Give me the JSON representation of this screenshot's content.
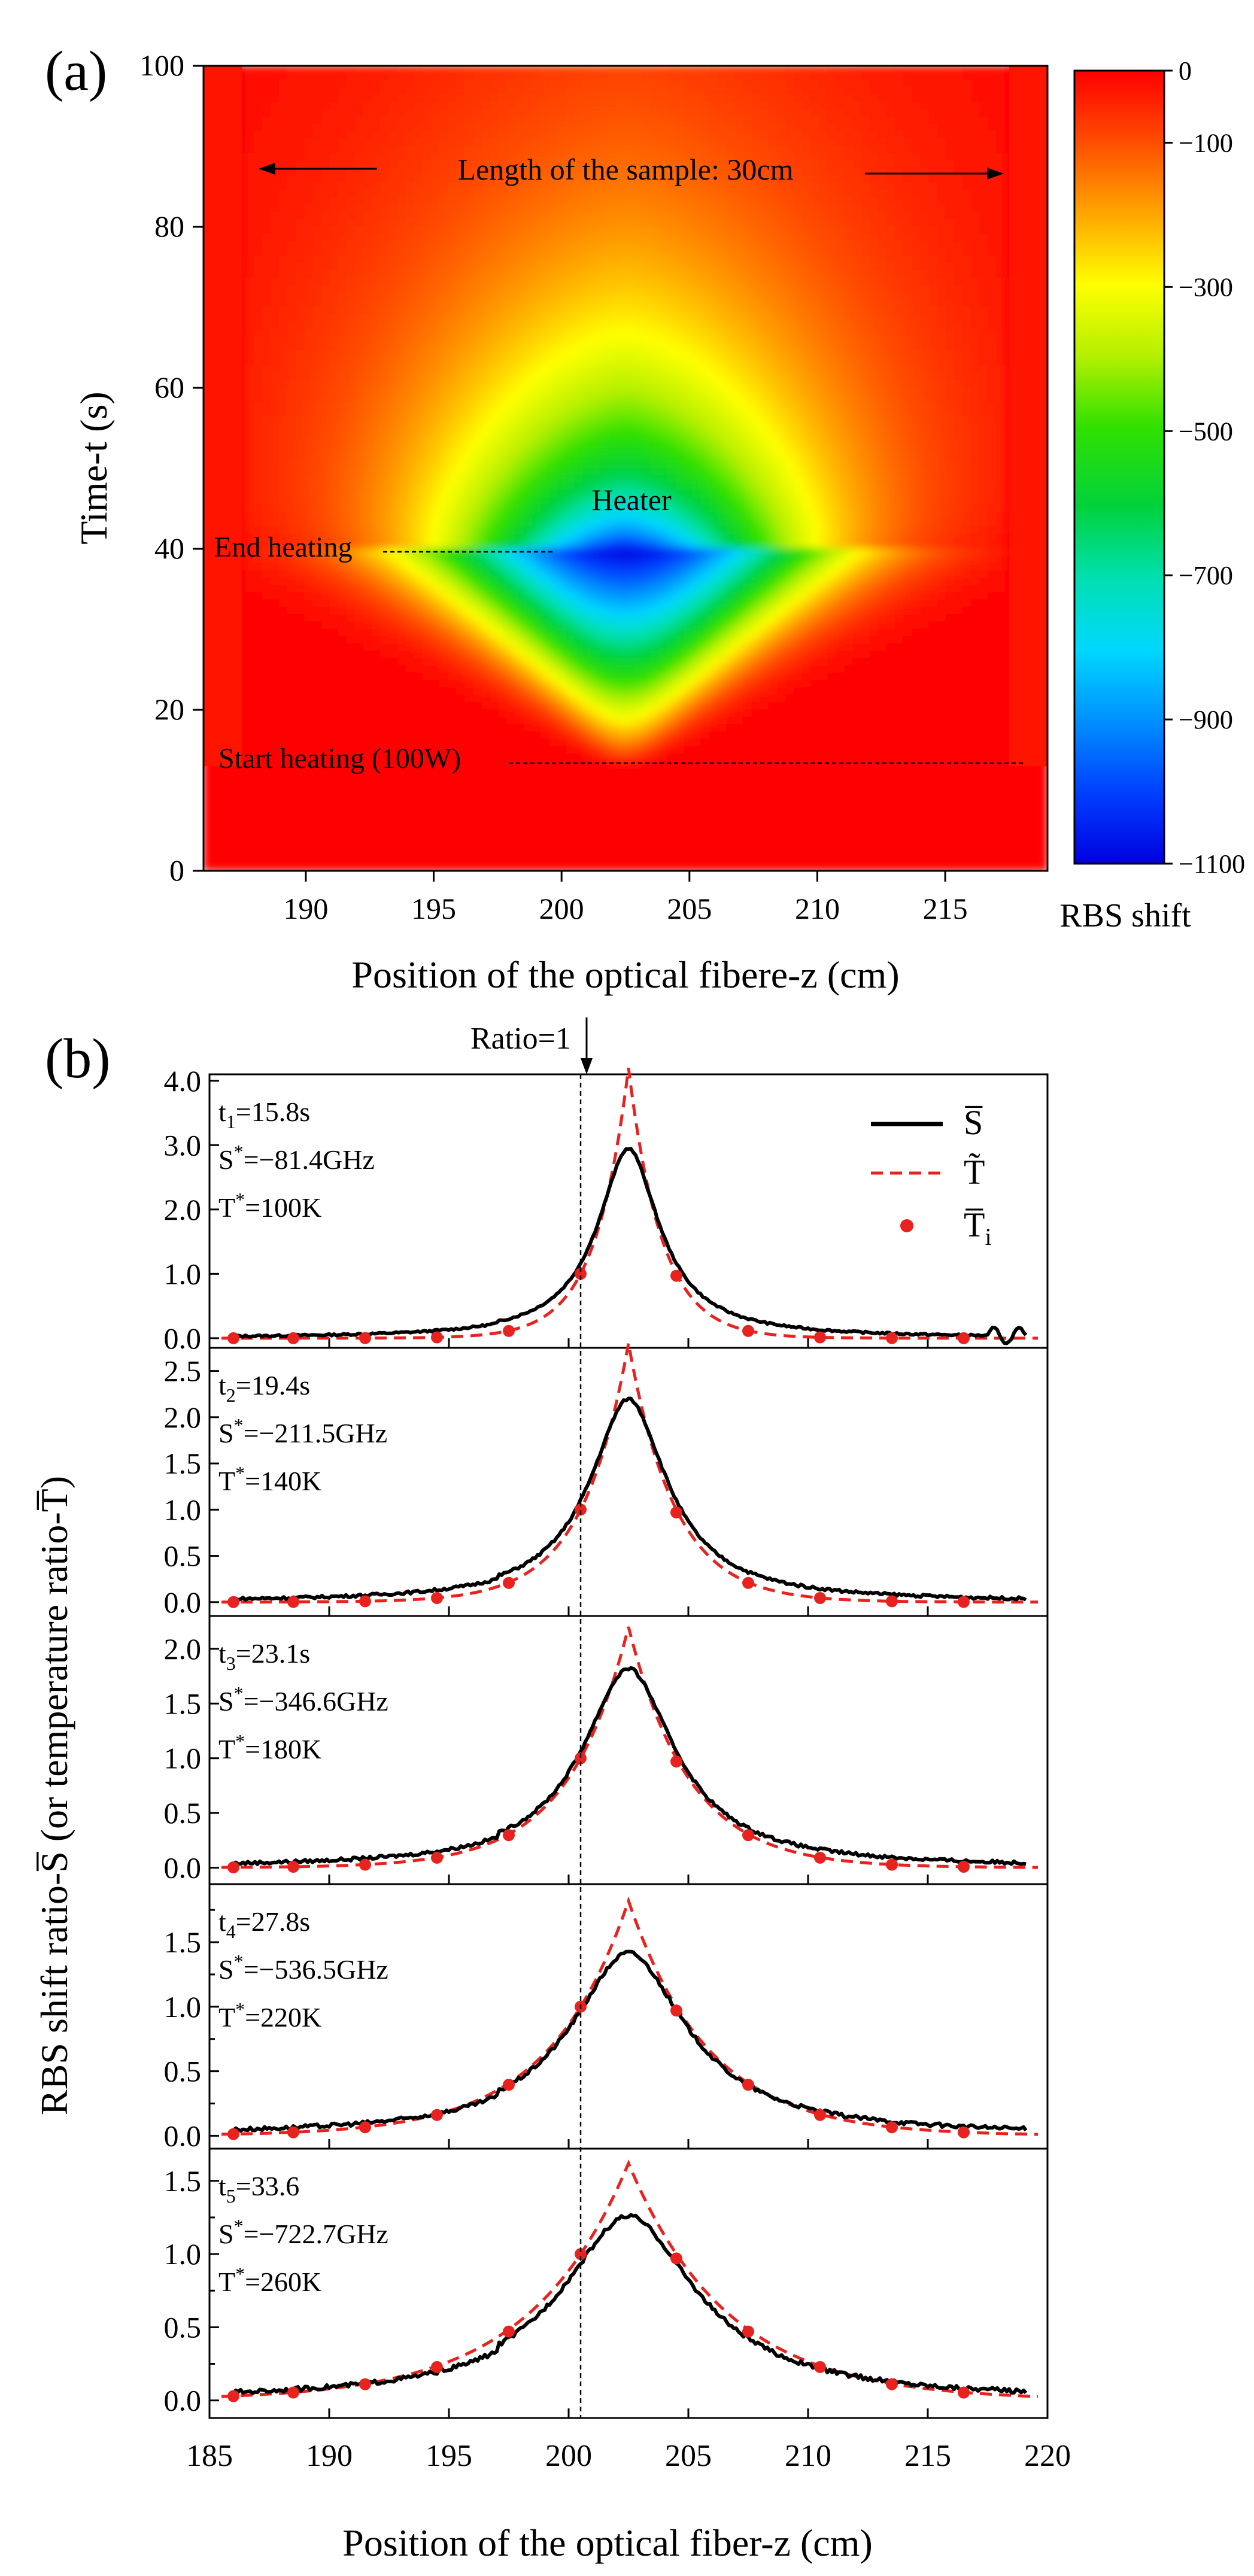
{
  "figure": {
    "panel_a_label": "(a)",
    "panel_b_label": "(b)"
  },
  "chart_data": [
    {
      "type": "heatmap",
      "panel": "a",
      "xlabel": "Position of the optical fibere-z (cm)",
      "ylabel": "Time-t (s)",
      "xlim": [
        186,
        219
      ],
      "ylim": [
        0,
        100
      ],
      "xticks": [
        190,
        195,
        200,
        205,
        210,
        215
      ],
      "yticks": [
        0,
        20,
        40,
        60,
        80,
        100
      ],
      "colorbar": {
        "label": "RBS shift",
        "min": -1100,
        "max": 0,
        "ticks": [
          "0",
          "−100",
          "−300",
          "−500",
          "−700",
          "−900",
          "−1100"
        ],
        "tick_values": [
          0,
          -100,
          -300,
          -500,
          -700,
          -900,
          -1100
        ]
      },
      "annotations": {
        "length": "Length of the sample: 30cm",
        "heater": "Heater",
        "end_heating": "End heating",
        "start_heating": "Start heating (100W)"
      },
      "heater_center_z": 202.5,
      "heat_start_t": 13,
      "heat_end_t": 40,
      "sample_edges_z": [
        187.5,
        217.5
      ],
      "max_shift": -1100
    },
    {
      "type": "line",
      "panel": "b",
      "xlabel": "Position of the optical fiber-z (cm)",
      "ylabel": "RBS shift ratio-S̅ (or temperature ratio-T̅)",
      "xlim": [
        185,
        220
      ],
      "xticks": [
        185,
        190,
        195,
        200,
        205,
        210,
        215,
        220
      ],
      "ratio_marker": {
        "label": "Ratio=1",
        "z": 200.5
      },
      "legend": [
        {
          "name": "S̅",
          "style": "solid-black"
        },
        {
          "name": "T̃",
          "style": "dashed-red"
        },
        {
          "name": "T̅",
          "subscript": "i",
          "style": "red-dots"
        }
      ],
      "series_colors": {
        "measured": "#000000",
        "model": "#e8221f",
        "points": "#e8221f"
      },
      "subplots": [
        {
          "t_label": "t",
          "t_sub": "1",
          "t_value": "=15.8s",
          "s_label": "S",
          "s_value": "=−81.4GHz",
          "temp_label": "T",
          "temp_value": "=100K",
          "ylim": [
            -0.15,
            4.1
          ],
          "yticks": [
            0.0,
            1.0,
            2.0,
            3.0,
            4.0
          ],
          "ytick_labels": [
            "0.0",
            "1.0",
            "2.0",
            "3.0",
            "4.0"
          ],
          "peak_measured": 2.95,
          "peak_model": 4.2,
          "width": 1.6
        },
        {
          "t_label": "t",
          "t_sub": "2",
          "t_value": "=19.4s",
          "s_label": "S",
          "s_value": "=−211.5GHz",
          "temp_label": "T",
          "temp_value": "=140K",
          "ylim": [
            -0.15,
            2.75
          ],
          "yticks": [
            0.0,
            0.5,
            1.0,
            1.5,
            2.0,
            2.5
          ],
          "ytick_labels": [
            "0.0",
            "0.5",
            "1.0",
            "1.5",
            "2.0",
            "2.5"
          ],
          "peak_measured": 2.2,
          "peak_model": 2.8,
          "width": 2.0
        },
        {
          "t_label": "t",
          "t_sub": "3",
          "t_value": "=23.1s",
          "s_label": "S",
          "s_value": "=−346.6GHz",
          "temp_label": "T",
          "temp_value": "=180K",
          "ylim": [
            -0.15,
            2.3
          ],
          "yticks": [
            0.0,
            0.5,
            1.0,
            1.5,
            2.0
          ],
          "ytick_labels": [
            "0.0",
            "0.5",
            "1.0",
            "1.5",
            "2.0"
          ],
          "peak_measured": 1.82,
          "peak_model": 2.2,
          "width": 2.4
        },
        {
          "t_label": "t",
          "t_sub": "4",
          "t_value": "=27.8s",
          "s_label": "S",
          "s_value": "=−536.5GHz",
          "temp_label": "T",
          "temp_value": "=220K",
          "ylim": [
            -0.1,
            1.95
          ],
          "yticks": [
            0.0,
            0.25,
            0.5,
            0.75,
            1.0,
            1.25,
            1.5,
            1.75
          ],
          "ytick_labels": [
            "0.0",
            "",
            "0.5",
            "",
            "1.0",
            "",
            "1.5",
            ""
          ],
          "peak_measured": 1.42,
          "peak_model": 1.82,
          "width": 3.0
        },
        {
          "t_label": "t",
          "t_sub": "5",
          "t_value": "=33.6",
          "s_label": "S",
          "s_value": "=−722.7GHz",
          "temp_label": "T",
          "temp_value": "=260K",
          "ylim": [
            -0.12,
            1.72
          ],
          "yticks": [
            0.0,
            0.25,
            0.5,
            0.75,
            1.0,
            1.25,
            1.5
          ],
          "ytick_labels": [
            "0.0",
            "",
            "0.5",
            "",
            "1.0",
            "",
            "1.5"
          ],
          "peak_measured": 1.26,
          "peak_model": 1.62,
          "width": 3.5
        }
      ]
    }
  ]
}
